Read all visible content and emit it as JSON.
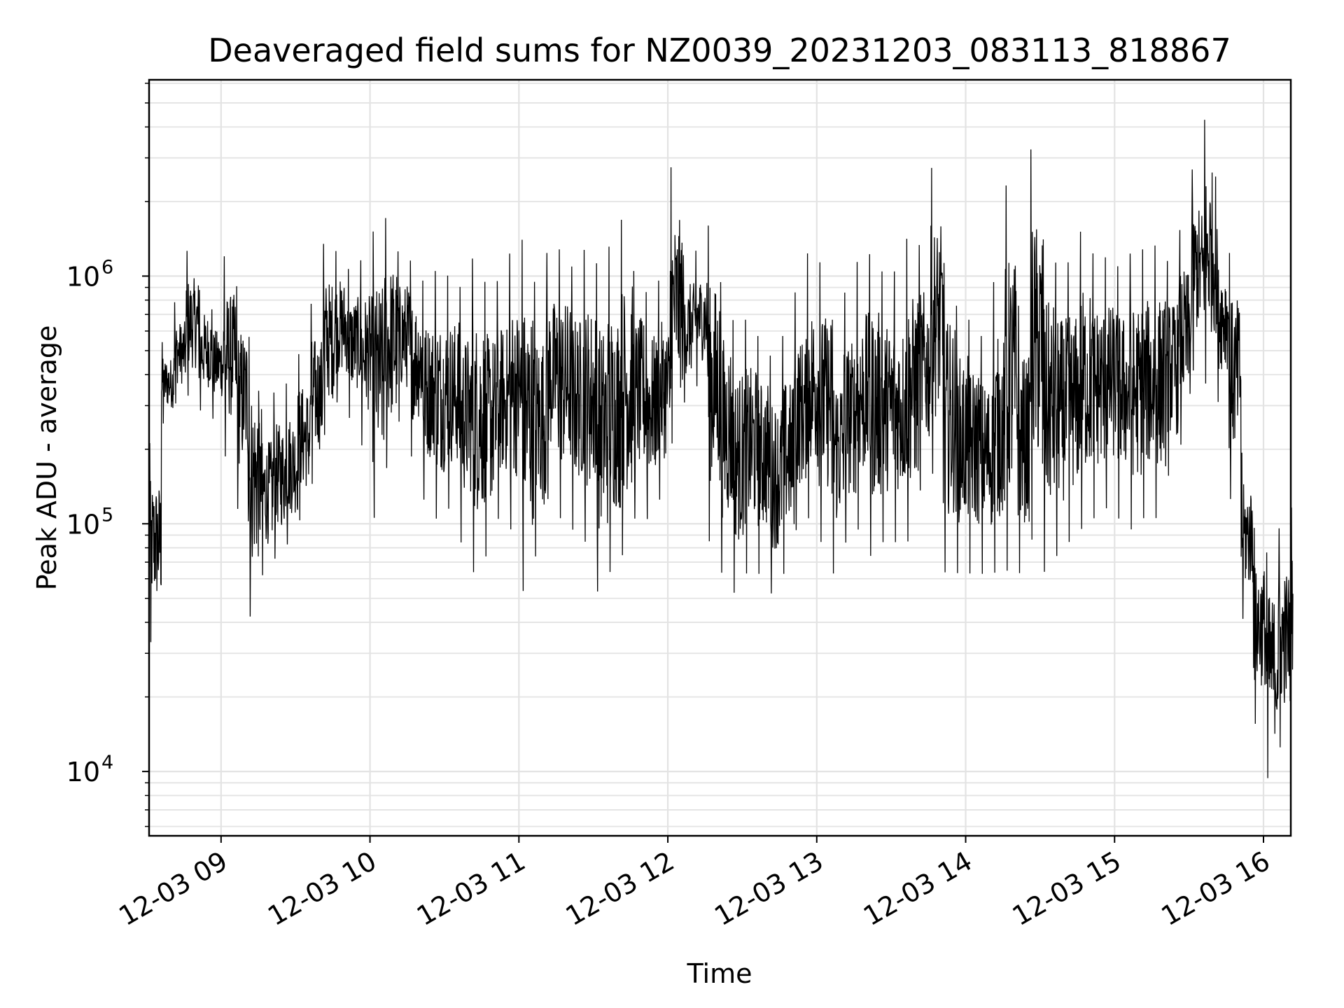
{
  "chart_data": {
    "type": "line",
    "title": "Deaveraged field sums for NZ0039_20231203_083113_818867",
    "xlabel": "Time",
    "ylabel": "Peak ADU - average",
    "yscale": "log",
    "ylim": [
      5500,
      6200000
    ],
    "xlim": [
      "2023-12-03 08:31",
      "2023-12-03 16:11"
    ],
    "grid": true,
    "x_tick_labels": [
      "12-03 09",
      "12-03 10",
      "12-03 11",
      "12-03 12",
      "12-03 13",
      "12-03 14",
      "12-03 15",
      "12-03 16"
    ],
    "x_ticks": [
      "2023-12-03 09:00",
      "2023-12-03 10:00",
      "2023-12-03 11:00",
      "2023-12-03 12:00",
      "2023-12-03 13:00",
      "2023-12-03 14:00",
      "2023-12-03 15:00",
      "2023-12-03 16:00"
    ],
    "y_tick_labels": [
      {
        "base": "10",
        "exp": "4",
        "value": 10000
      },
      {
        "base": "10",
        "exp": "5",
        "value": 100000
      },
      {
        "base": "10",
        "exp": "6",
        "value": 1000000
      }
    ],
    "series": [
      {
        "color": "#000000",
        "x": [
          "08:31",
          "08:36",
          "08:41",
          "08:46",
          "08:51",
          "08:56",
          "09:01",
          "09:06",
          "09:11",
          "09:16",
          "09:21",
          "09:26",
          "09:31",
          "09:36",
          "09:41",
          "09:46",
          "09:51",
          "09:56",
          "10:01",
          "10:06",
          "10:11",
          "10:16",
          "10:21",
          "10:26",
          "10:31",
          "10:36",
          "10:41",
          "10:46",
          "10:51",
          "10:56",
          "11:01",
          "11:06",
          "11:11",
          "11:16",
          "11:21",
          "11:26",
          "11:31",
          "11:36",
          "11:41",
          "11:46",
          "11:51",
          "11:56",
          "12:01",
          "12:06",
          "12:11",
          "12:16",
          "12:21",
          "12:26",
          "12:31",
          "12:36",
          "12:41",
          "12:46",
          "12:51",
          "12:56",
          "13:01",
          "13:06",
          "13:11",
          "13:16",
          "13:21",
          "13:26",
          "13:31",
          "13:36",
          "13:41",
          "13:46",
          "13:51",
          "13:56",
          "14:01",
          "14:06",
          "14:11",
          "14:16",
          "14:21",
          "14:26",
          "14:31",
          "14:36",
          "14:41",
          "14:46",
          "14:51",
          "14:56",
          "15:01",
          "15:06",
          "15:11",
          "15:16",
          "15:21",
          "15:26",
          "15:31",
          "15:36",
          "15:41",
          "15:46",
          "15:51",
          "15:56",
          "16:01",
          "16:06",
          "16:11"
        ],
        "low": [
          32000,
          250000,
          300000,
          320000,
          280000,
          260000,
          180000,
          110000,
          40000,
          60000,
          70000,
          80000,
          100000,
          140000,
          220000,
          300000,
          260000,
          200000,
          100000,
          160000,
          250000,
          180000,
          120000,
          100000,
          110000,
          80000,
          60000,
          70000,
          100000,
          90000,
          50000,
          70000,
          120000,
          100000,
          90000,
          80000,
          50000,
          60000,
          70000,
          100000,
          100000,
          120000,
          200000,
          300000,
          350000,
          80000,
          60000,
          50000,
          60000,
          60000,
          50000,
          60000,
          90000,
          100000,
          80000,
          60000,
          80000,
          90000,
          70000,
          80000,
          80000,
          80000,
          130000,
          150000,
          60000,
          60000,
          60000,
          60000,
          60000,
          60000,
          60000,
          80000,
          60000,
          70000,
          80000,
          90000,
          100000,
          110000,
          100000,
          90000,
          100000,
          100000,
          150000,
          200000,
          400000,
          350000,
          300000,
          120000,
          40000,
          15000,
          9000,
          12000,
          25000
        ],
        "high": [
          220000,
          550000,
          800000,
          1300000,
          900000,
          750000,
          1250000,
          950000,
          600000,
          300000,
          350000,
          380000,
          500000,
          800000,
          1400000,
          1300000,
          1100000,
          1200000,
          1600000,
          1800000,
          1300000,
          1200000,
          1000000,
          1100000,
          1050000,
          950000,
          1250000,
          1000000,
          1000000,
          1300000,
          1500000,
          1000000,
          1300000,
          1350000,
          1150000,
          1350000,
          1200000,
          1400000,
          1800000,
          1100000,
          900000,
          1000000,
          2900000,
          1250000,
          1300000,
          1700000,
          1000000,
          700000,
          700000,
          600000,
          500000,
          600000,
          900000,
          1300000,
          1200000,
          700000,
          900000,
          1200000,
          1300000,
          1100000,
          1100000,
          1500000,
          1400000,
          2900000,
          1200000,
          800000,
          700000,
          600000,
          1000000,
          2500000,
          800000,
          3500000,
          1500000,
          1200000,
          1200000,
          1600000,
          1300000,
          1250000,
          1150000,
          1300000,
          1350000,
          1400000,
          1200000,
          1600000,
          2800000,
          4500000,
          1600000,
          1300000,
          200000,
          100000,
          80000,
          100000,
          120000
        ]
      }
    ]
  }
}
